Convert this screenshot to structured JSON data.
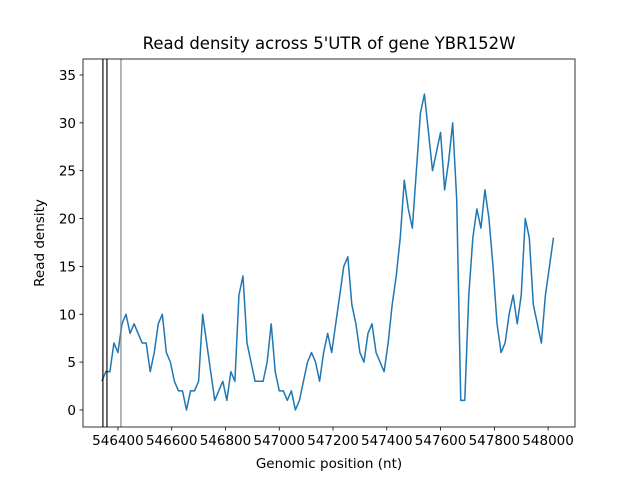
{
  "chart_data": {
    "type": "line",
    "title": "Read density across 5'UTR of gene YBR152W",
    "xlabel": "Genomic position (nt)",
    "ylabel": "Read density",
    "x": [
      546340,
      546355,
      546370,
      546385,
      546400,
      546415,
      546430,
      546445,
      546460,
      546475,
      546490,
      546505,
      546520,
      546535,
      546550,
      546565,
      546580,
      546595,
      546610,
      546625,
      546640,
      546655,
      546670,
      546685,
      546700,
      546715,
      546730,
      546745,
      546760,
      546775,
      546790,
      546805,
      546820,
      546835,
      546850,
      546865,
      546880,
      546895,
      546910,
      546925,
      546940,
      546955,
      546970,
      546985,
      547000,
      547015,
      547030,
      547045,
      547060,
      547075,
      547090,
      547105,
      547120,
      547135,
      547150,
      547165,
      547180,
      547195,
      547210,
      547225,
      547240,
      547255,
      547270,
      547285,
      547300,
      547315,
      547330,
      547345,
      547360,
      547375,
      547390,
      547405,
      547420,
      547435,
      547450,
      547465,
      547480,
      547495,
      547510,
      547525,
      547540,
      547555,
      547570,
      547585,
      547600,
      547615,
      547630,
      547645,
      547660,
      547675,
      547690,
      547705,
      547720,
      547735,
      547750,
      547765,
      547780,
      547795,
      547810,
      547825,
      547840,
      547855,
      547870,
      547885,
      547900,
      547915,
      547930,
      547945,
      547960,
      547975,
      547990,
      548005,
      548020
    ],
    "series": [
      {
        "color": "#1f77b4",
        "values": [
          3,
          4,
          4,
          7,
          6,
          9,
          10,
          8,
          9,
          8,
          7,
          7,
          4,
          6,
          9,
          10,
          6,
          5,
          3,
          2,
          2,
          0,
          2,
          2,
          3,
          10,
          7,
          4,
          1,
          2,
          3,
          1,
          4,
          3,
          12,
          14,
          7,
          5,
          3,
          3,
          3,
          5,
          9,
          4,
          2,
          2,
          1,
          2,
          0,
          1,
          3,
          5,
          6,
          5,
          3,
          6,
          8,
          6,
          9,
          12,
          15,
          16,
          11,
          9,
          6,
          5,
          8,
          9,
          6,
          5,
          4,
          7,
          11,
          14,
          18,
          24,
          21,
          19,
          25,
          31,
          33,
          29,
          25,
          27,
          29,
          23,
          26,
          30,
          22,
          1,
          1,
          12,
          18,
          21,
          19,
          23,
          20,
          15,
          9,
          6,
          7,
          10,
          12,
          9,
          12,
          20,
          18,
          11,
          9,
          7,
          12,
          15,
          18
        ]
      }
    ],
    "vlines": [
      {
        "x": 546344,
        "color": "#000000"
      },
      {
        "x": 546359,
        "color": "#000000"
      },
      {
        "x": 546411,
        "color": "#808080"
      }
    ],
    "xlim": [
      546270,
      548100
    ],
    "ylim": [
      -1.78,
      36.67
    ],
    "xticks": [
      546400,
      546600,
      546800,
      547000,
      547200,
      547400,
      547600,
      547800,
      548000
    ],
    "yticks": [
      0,
      5,
      10,
      15,
      20,
      25,
      30,
      35
    ]
  }
}
